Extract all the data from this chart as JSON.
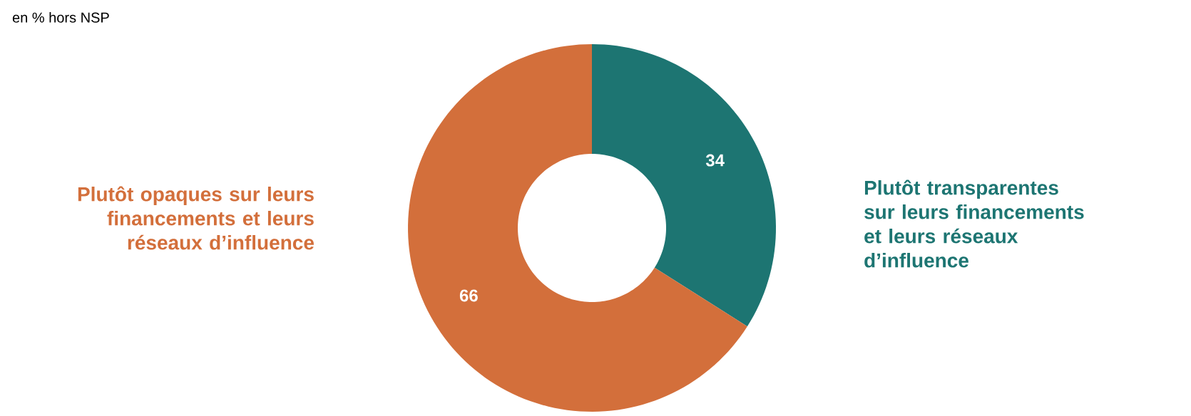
{
  "chart_data": {
    "type": "donut",
    "title": "en % hors NSP",
    "categories": [
      "Plutôt transparentes sur leurs financements et leurs réseaux d’influence",
      "Plutôt opaques sur leurs financements et leurs réseaux d’influence"
    ],
    "values": [
      34,
      66
    ],
    "colors": [
      "#1d7572",
      "#d36f3b"
    ],
    "data_labels": true
  }
}
